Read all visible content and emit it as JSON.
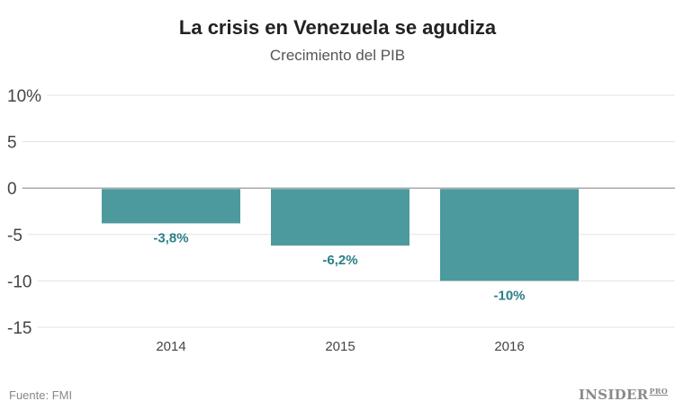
{
  "chart_data": {
    "type": "bar",
    "title": "La crisis en Venezuela se agudiza",
    "subtitle": "Crecimiento del PIB",
    "categories": [
      "2014",
      "2015",
      "2016"
    ],
    "values": [
      -3.8,
      -6.2,
      -10
    ],
    "data_labels": [
      "-3,8%",
      "-6,2%",
      "-10%"
    ],
    "ylim": [
      -15,
      10
    ],
    "yticks": [
      10,
      5,
      0,
      -5,
      -10,
      -15
    ],
    "ytick_labels": [
      "10%",
      "5",
      "0",
      "-5",
      "-10",
      "-15"
    ],
    "grid": true,
    "colors": {
      "bar": "#4d9a9e",
      "label": "#2a7f86"
    }
  },
  "footer": {
    "source": "Fuente: FMI",
    "logo": "INSIDER",
    "logo_suffix": "PRO"
  }
}
